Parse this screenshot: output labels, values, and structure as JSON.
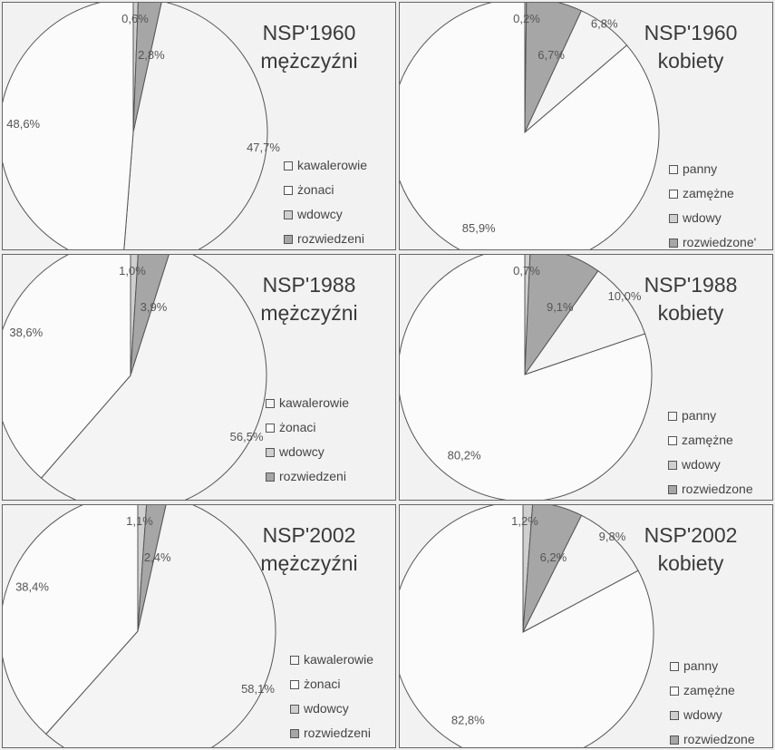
{
  "colors": {
    "kawalerowie": "#f4f4f4",
    "zonaci": "#fbfbfb",
    "wdowcy": "#cfcfcf",
    "rozwiedzeni": "#a6a6a6",
    "outline": "#555555"
  },
  "chart_data": [
    {
      "type": "pie",
      "title": "NSP'1960",
      "subtitle": "mężczyźni",
      "categories": [
        "kawalerowie",
        "żonaci",
        "wdowcy",
        "rozwiedzeni"
      ],
      "values": [
        47.7,
        48.6,
        0.6,
        2.8
      ],
      "labels": [
        "47,7%",
        "48,6%",
        "0,6%",
        "2,8%"
      ],
      "legend": [
        "kawalerowie",
        "żonaci",
        "wdowcy",
        "rozwiedzeni"
      ],
      "legend_position": "bottom-right"
    },
    {
      "type": "pie",
      "title": "NSP'1960",
      "subtitle": "kobiety",
      "categories": [
        "panny",
        "zamężne",
        "wdowy",
        "rozwiedzone"
      ],
      "values": [
        6.8,
        85.9,
        0.2,
        6.7
      ],
      "labels": [
        "6,8%",
        "85,9%",
        "0,2%",
        "6,7%"
      ],
      "legend": [
        "panny",
        "zamężne",
        "wdowy",
        "rozwiedzone'"
      ],
      "legend_position": "bottom-right"
    },
    {
      "type": "pie",
      "title": "NSP'1988",
      "subtitle": "mężczyźni",
      "categories": [
        "kawalerowie",
        "żonaci",
        "wdowcy",
        "rozwiedzeni"
      ],
      "values": [
        56.5,
        38.6,
        1.0,
        3.9
      ],
      "labels": [
        "56,5%",
        "38,6%",
        "1,0%",
        "3,9%"
      ],
      "legend": [
        "kawalerowie",
        "żonaci",
        "wdowcy",
        "rozwiedzeni"
      ],
      "legend_position": "bottom-right"
    },
    {
      "type": "pie",
      "title": "NSP'1988",
      "subtitle": "kobiety",
      "categories": [
        "panny",
        "zamężne",
        "wdowy",
        "rozwiedzone"
      ],
      "values": [
        10.0,
        80.2,
        0.7,
        9.1
      ],
      "labels": [
        "10,0%",
        "80,2%",
        "0,7%",
        "9,1%"
      ],
      "legend": [
        "panny",
        "zamężne",
        "wdowy",
        "rozwiedzone"
      ],
      "legend_position": "bottom-right"
    },
    {
      "type": "pie",
      "title": "NSP'2002",
      "subtitle": "mężczyźni",
      "categories": [
        "kawalerowie",
        "żonaci",
        "wdowcy",
        "rozwiedzeni"
      ],
      "values": [
        58.1,
        38.4,
        1.1,
        2.4
      ],
      "labels": [
        "58,1%",
        "38,4%",
        "1,1%",
        "2,4%"
      ],
      "legend": [
        "kawalerowie",
        "żonaci",
        "wdowcy",
        "rozwiedzeni"
      ],
      "legend_position": "bottom-right"
    },
    {
      "type": "pie",
      "title": "NSP'2002",
      "subtitle": "kobiety",
      "categories": [
        "panny",
        "zamężne",
        "wdowy",
        "rozwiedzone"
      ],
      "values": [
        9.8,
        82.8,
        1.2,
        6.2
      ],
      "labels": [
        "9,8%",
        "82,8%",
        "1,2%",
        "6,2%"
      ],
      "legend": [
        "panny",
        "zamężne",
        "wdowy",
        "rozwiedzone"
      ],
      "legend_position": "bottom-right"
    }
  ]
}
